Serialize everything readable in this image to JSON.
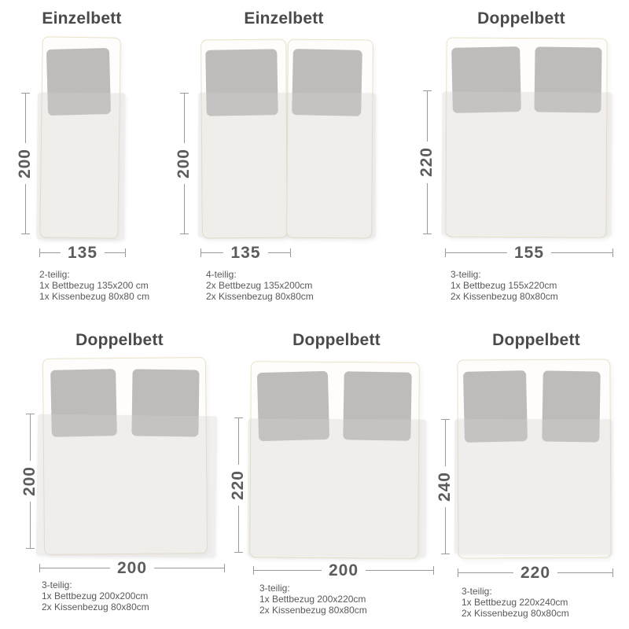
{
  "colors": {
    "background": "#ffffff",
    "title_text": "#4a4a4a",
    "dimension_text": "#5c5c5c",
    "dimension_line": "#9a9a9a",
    "annotation_text": "#595959",
    "pillow_fill": "#bdbcbb",
    "duvet_fill": "#f1f0ee",
    "frame_border": "#e9e1c8",
    "frame_fill": "#fefdfb"
  },
  "beds": [
    {
      "title": "Einzelbett",
      "height_label": "200",
      "width_label": "135",
      "set": [
        "2-teilig:",
        "1x Bettbezug 135x200 cm",
        "1x Kissenbezug 80x80 cm"
      ]
    },
    {
      "title": "Einzelbett",
      "height_label": "200",
      "width_label": "135",
      "set": [
        "4-teilig:",
        "2x Bettbezug 135x200cm",
        "2x Kissenbezug 80x80cm"
      ]
    },
    {
      "title": "Doppelbett",
      "height_label": "220",
      "width_label": "155",
      "set": [
        "3-teilig:",
        "1x Bettbezug 155x220cm",
        "2x Kissenbezug 80x80cm"
      ]
    },
    {
      "title": "Doppelbett",
      "height_label": "200",
      "width_label": "200",
      "set": [
        "3-teilig:",
        "1x Bettbezug 200x200cm",
        "2x Kissenbezug 80x80cm"
      ]
    },
    {
      "title": "Doppelbett",
      "height_label": "220",
      "width_label": "200",
      "set": [
        "3-teilig:",
        "1x Bettbezug 200x220cm",
        "2x Kissenbezug 80x80cm"
      ]
    },
    {
      "title": "Doppelbett",
      "height_label": "240",
      "width_label": "220",
      "set": [
        "3-teilig:",
        "1x Bettbezug 220x240cm",
        "2x Kissenbezug 80x80cm"
      ]
    }
  ]
}
